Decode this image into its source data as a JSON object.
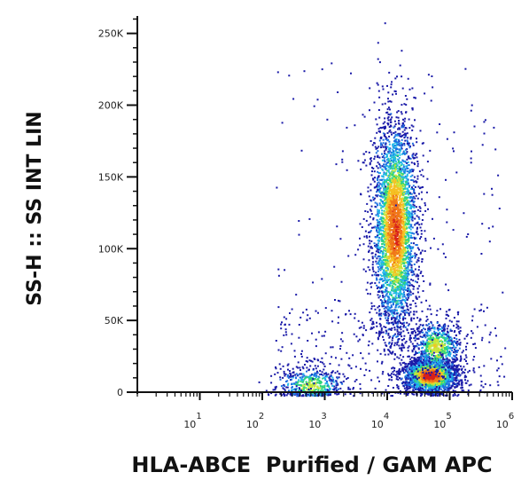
{
  "chart_data": {
    "type": "scatter",
    "subtype": "flow-cytometry-density-dot-plot",
    "xlabel": "HLA-ABCE  Purified / GAM APC",
    "ylabel": "SS-H :: SS INT LIN",
    "x_scale": "log",
    "y_scale": "linear",
    "xlim": [
      1,
      1000000
    ],
    "ylim": [
      0,
      262144
    ],
    "y_ticks": [
      "0",
      "50K",
      "100K",
      "150K",
      "200K",
      "250K"
    ],
    "y_tick_values": [
      0,
      50000,
      100000,
      150000,
      200000,
      250000
    ],
    "x_ticks": [
      {
        "base": "10",
        "exp": "1",
        "value": 10
      },
      {
        "base": "10",
        "exp": "2",
        "value": 100
      },
      {
        "base": "10",
        "exp": "3",
        "value": 1000
      },
      {
        "base": "10",
        "exp": "4",
        "value": 10000
      },
      {
        "base": "10",
        "exp": "5",
        "value": 100000
      },
      {
        "base": "10",
        "exp": "6",
        "value": 1000000
      }
    ],
    "grid": false,
    "legend": "none",
    "density_colors": [
      "#1a1aa8",
      "#1f6fe0",
      "#22b8e8",
      "#2fd47a",
      "#c8e63a",
      "#f5c023",
      "#f07818",
      "#d8201a"
    ],
    "populations": [
      {
        "x_center": 600,
        "x_spread": 0.28,
        "y_center": 5000,
        "y_spread": 7000,
        "count": 520,
        "peak": 0.55
      },
      {
        "x_center": 13000,
        "x_spread": 0.18,
        "y_center": 115000,
        "y_spread": 38000,
        "count": 3600,
        "peak": 0.9
      },
      {
        "x_center": 48000,
        "x_spread": 0.22,
        "y_center": 12000,
        "y_spread": 6000,
        "count": 2000,
        "peak": 1.0
      },
      {
        "x_center": 60000,
        "x_spread": 0.2,
        "y_center": 32000,
        "y_spread": 10000,
        "count": 700,
        "peak": 0.6
      }
    ]
  }
}
